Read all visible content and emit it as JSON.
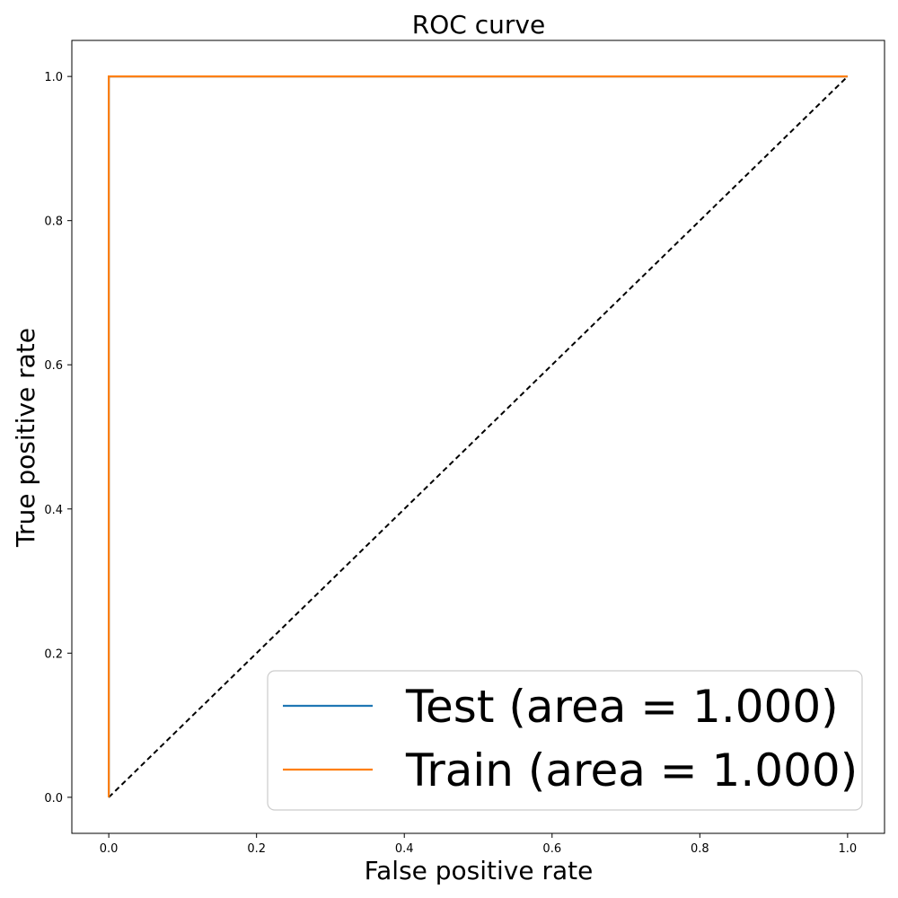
{
  "chart_data": {
    "type": "line",
    "title": "ROC curve",
    "xlabel": "False positive rate",
    "ylabel": "True positive rate",
    "xlim": [
      -0.05,
      1.05
    ],
    "ylim": [
      -0.05,
      1.05
    ],
    "x_ticks": [
      0.0,
      0.2,
      0.4,
      0.6,
      0.8,
      1.0
    ],
    "y_ticks": [
      0.0,
      0.2,
      0.4,
      0.6,
      0.8,
      1.0
    ],
    "x_tick_labels": [
      "0.0",
      "0.2",
      "0.4",
      "0.6",
      "0.8",
      "1.0"
    ],
    "y_tick_labels": [
      "0.0",
      "0.2",
      "0.4",
      "0.6",
      "0.8",
      "1.0"
    ],
    "grid": false,
    "legend_position": "lower-right",
    "series": [
      {
        "name": "Test (area = 1.000)",
        "color": "#1f77b4",
        "x": [
          0.0,
          0.0,
          1.0
        ],
        "y": [
          0.0,
          1.0,
          1.0
        ]
      },
      {
        "name": "Train (area = 1.000)",
        "color": "#ff7f0e",
        "x": [
          0.0,
          0.0,
          1.0
        ],
        "y": [
          0.0,
          1.0,
          1.0
        ]
      }
    ],
    "reference_line": {
      "x": [
        0.0,
        1.0
      ],
      "y": [
        0.0,
        1.0
      ],
      "color": "#000000",
      "style": "dashed"
    }
  }
}
